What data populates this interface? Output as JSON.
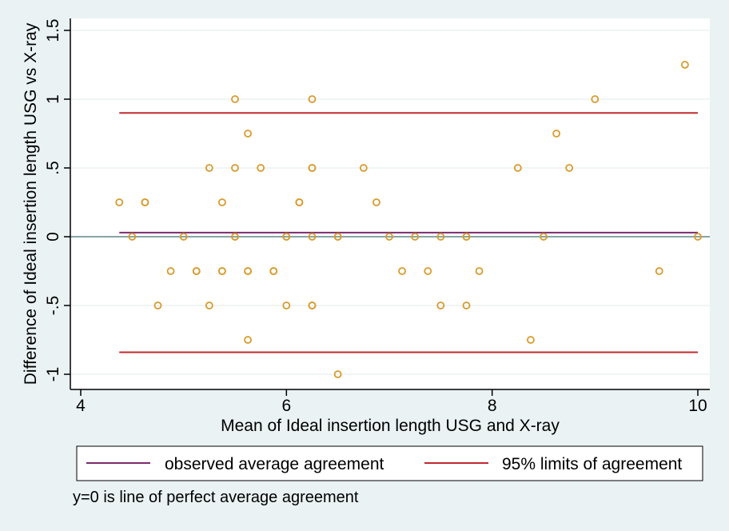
{
  "chart_data": {
    "type": "scatter",
    "xlabel": "Mean of Ideal insertion length USG and X-ray",
    "ylabel": "Difference of Ideal insertion length USG vs X-ray",
    "xlim": [
      4,
      10
    ],
    "ylim": [
      -1,
      1.5
    ],
    "x_ticks": [
      4,
      6,
      8,
      10
    ],
    "x_tick_labels": [
      "4",
      "6",
      "8",
      "10"
    ],
    "y_ticks": [
      -1,
      -0.5,
      0,
      0.5,
      1,
      1.5
    ],
    "y_tick_labels": [
      "-1",
      "-.5",
      "0",
      ".5",
      "1",
      "1.5"
    ],
    "grid": true,
    "points": [
      {
        "x": 4.375,
        "y": 0.25
      },
      {
        "x": 4.5,
        "y": 0
      },
      {
        "x": 4.625,
        "y": 0.25
      },
      {
        "x": 4.625,
        "y": 0.25
      },
      {
        "x": 4.75,
        "y": -0.5
      },
      {
        "x": 4.875,
        "y": -0.25
      },
      {
        "x": 5.0,
        "y": 0
      },
      {
        "x": 5.125,
        "y": -0.25
      },
      {
        "x": 5.125,
        "y": -0.25
      },
      {
        "x": 5.25,
        "y": 0.5
      },
      {
        "x": 5.25,
        "y": -0.5
      },
      {
        "x": 5.375,
        "y": 0.25
      },
      {
        "x": 5.375,
        "y": -0.25
      },
      {
        "x": 5.375,
        "y": -0.25
      },
      {
        "x": 5.5,
        "y": 1.0
      },
      {
        "x": 5.5,
        "y": 0.5
      },
      {
        "x": 5.5,
        "y": 0
      },
      {
        "x": 5.5,
        "y": 0
      },
      {
        "x": 5.625,
        "y": 0.75
      },
      {
        "x": 5.625,
        "y": -0.25
      },
      {
        "x": 5.625,
        "y": -0.25
      },
      {
        "x": 5.625,
        "y": -0.75
      },
      {
        "x": 5.75,
        "y": 0.5
      },
      {
        "x": 5.875,
        "y": -0.25
      },
      {
        "x": 5.875,
        "y": -0.25
      },
      {
        "x": 6.0,
        "y": 0
      },
      {
        "x": 6.0,
        "y": 0
      },
      {
        "x": 6.0,
        "y": -0.5
      },
      {
        "x": 6.125,
        "y": 0.25
      },
      {
        "x": 6.125,
        "y": 0.25
      },
      {
        "x": 6.25,
        "y": 1.0
      },
      {
        "x": 6.25,
        "y": 0.5
      },
      {
        "x": 6.25,
        "y": 0.5
      },
      {
        "x": 6.25,
        "y": 0
      },
      {
        "x": 6.25,
        "y": -0.5
      },
      {
        "x": 6.25,
        "y": -0.5
      },
      {
        "x": 6.5,
        "y": 0
      },
      {
        "x": 6.5,
        "y": 0
      },
      {
        "x": 6.5,
        "y": -1.0
      },
      {
        "x": 6.75,
        "y": 0.5
      },
      {
        "x": 6.875,
        "y": 0.25
      },
      {
        "x": 7.0,
        "y": 0
      },
      {
        "x": 7.125,
        "y": -0.25
      },
      {
        "x": 7.25,
        "y": 0
      },
      {
        "x": 7.375,
        "y": -0.25
      },
      {
        "x": 7.5,
        "y": 0
      },
      {
        "x": 7.5,
        "y": -0.5
      },
      {
        "x": 7.75,
        "y": 0
      },
      {
        "x": 7.75,
        "y": 0
      },
      {
        "x": 7.75,
        "y": -0.5
      },
      {
        "x": 7.875,
        "y": -0.25
      },
      {
        "x": 8.25,
        "y": 0.5
      },
      {
        "x": 8.375,
        "y": -0.75
      },
      {
        "x": 8.5,
        "y": 0
      },
      {
        "x": 8.625,
        "y": 0.75
      },
      {
        "x": 8.75,
        "y": 0.5
      },
      {
        "x": 9.0,
        "y": 1.0
      },
      {
        "x": 9.625,
        "y": -0.25
      },
      {
        "x": 9.875,
        "y": 1.25
      },
      {
        "x": 10.0,
        "y": 0
      }
    ],
    "reference_lines": {
      "zero": 0,
      "mean_difference": 0.03,
      "upper_limit": 0.9,
      "lower_limit": -0.84,
      "x_range": [
        4.375,
        10.0
      ]
    },
    "legend": {
      "placement": "bottom",
      "items": [
        {
          "label": "observed average agreement",
          "color": "#7b2a6e"
        },
        {
          "label": "95% limits of agreement",
          "color": "#c0282d"
        }
      ]
    },
    "note": "y=0 is line of perfect average agreement",
    "colors": {
      "background": "#eaf2f3",
      "plot_area": "#ffffff",
      "point": "#d89a2b",
      "zero_line": "#3f6f6c",
      "grid": "#e8efef"
    }
  }
}
